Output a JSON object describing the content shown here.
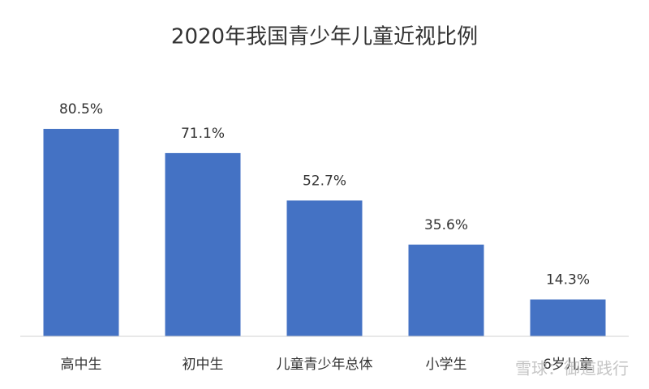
{
  "chart_data": {
    "type": "bar",
    "title": "2020年我国青少年儿童近视比例",
    "categories": [
      "高中生",
      "初中生",
      "儿童青少年总体",
      "小学生",
      "6岁儿童"
    ],
    "values": [
      80.5,
      71.1,
      52.7,
      35.6,
      14.3
    ],
    "value_labels": [
      "80.5%",
      "71.1%",
      "52.7%",
      "35.6%",
      "14.3%"
    ],
    "color": "#4472c4",
    "ylim": [
      0,
      100
    ],
    "grid": false,
    "watermark": "雪球：御道践行"
  }
}
